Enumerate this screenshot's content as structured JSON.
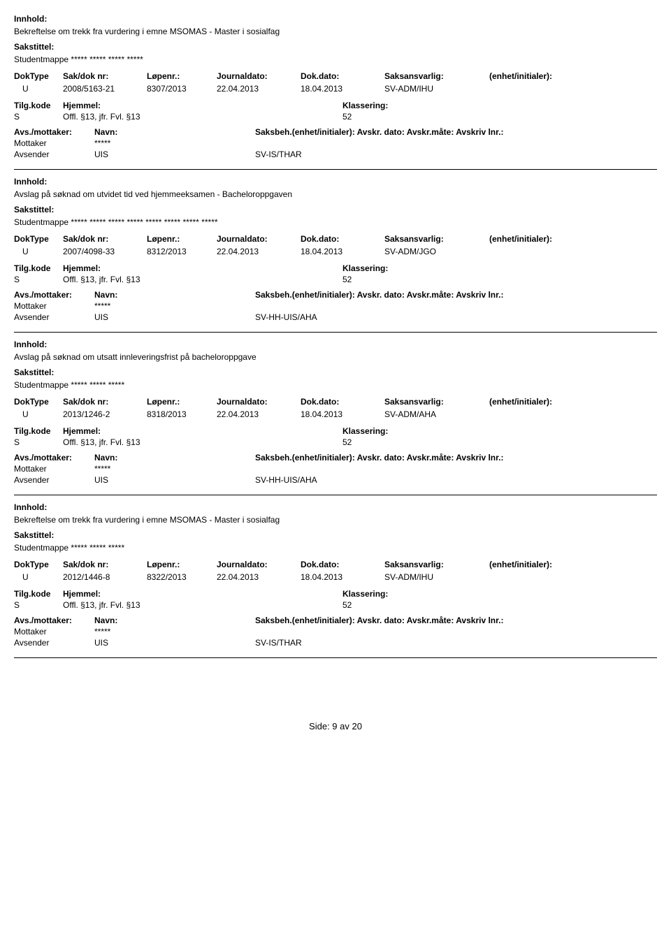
{
  "labels": {
    "innhold": "Innhold:",
    "sakstittel": "Sakstittel:",
    "doktype": "DokType",
    "sakdok": "Sak/dok nr:",
    "lopenr": "Løpenr.:",
    "journaldato": "Journaldato:",
    "dokdato": "Dok.dato:",
    "saksansvarlig": "Saksansvarlig:",
    "enhet": "(enhet/initialer):",
    "tilgkode": "Tilg.kode",
    "hjemmel": "Hjemmel:",
    "klassering": "Klassering:",
    "avsmottaker": "Avs./mottaker:",
    "navn": "Navn:",
    "saksbeh": "Saksbeh.(enhet/initialer): Avskr. dato:  Avskr.måte:  Avskriv lnr.:",
    "mottaker": "Mottaker",
    "avsender": "Avsender"
  },
  "records": [
    {
      "innhold": "Bekreftelse om trekk fra vurdering i emne MSOMAS - Master i sosialfag",
      "sakstittel": "Studentmappe ***** ***** ***** *****",
      "doktype": "U",
      "sakdok": "2008/5163-21",
      "lopenr": "8307/2013",
      "journaldato": "22.04.2013",
      "dokdato": "18.04.2013",
      "saksansvarlig": "SV-ADM/IHU",
      "tilgkode": "S",
      "hjemmel": "Offl. §13, jfr. Fvl. §13",
      "klassering": "52",
      "mottaker_name": "*****",
      "avsender_name": "UIS",
      "avsender_unit": "SV-IS/THAR"
    },
    {
      "innhold": "Avslag på søknad om utvidet tid ved hjemmeeksamen - Bacheloroppgaven",
      "sakstittel": "Studentmappe ***** ***** ***** ***** ***** ***** ***** *****",
      "doktype": "U",
      "sakdok": "2007/4098-33",
      "lopenr": "8312/2013",
      "journaldato": "22.04.2013",
      "dokdato": "18.04.2013",
      "saksansvarlig": "SV-ADM/JGO",
      "tilgkode": "S",
      "hjemmel": "Offl. §13, jfr. Fvl. §13",
      "klassering": "52",
      "mottaker_name": "*****",
      "avsender_name": "UIS",
      "avsender_unit": "SV-HH-UIS/AHA"
    },
    {
      "innhold": "Avslag på søknad om utsatt innleveringsfrist på bacheloroppgave",
      "sakstittel": "Studentmappe ***** ***** *****",
      "doktype": "U",
      "sakdok": "2013/1246-2",
      "lopenr": "8318/2013",
      "journaldato": "22.04.2013",
      "dokdato": "18.04.2013",
      "saksansvarlig": "SV-ADM/AHA",
      "tilgkode": "S",
      "hjemmel": "Offl. §13, jfr. Fvl. §13",
      "klassering": "52",
      "mottaker_name": "*****",
      "avsender_name": "UIS",
      "avsender_unit": "SV-HH-UIS/AHA"
    },
    {
      "innhold": "Bekreftelse om trekk fra vurdering i emne MSOMAS - Master i sosialfag",
      "sakstittel": "Studentmappe ***** ***** *****",
      "doktype": "U",
      "sakdok": "2012/1446-8",
      "lopenr": "8322/2013",
      "journaldato": "22.04.2013",
      "dokdato": "18.04.2013",
      "saksansvarlig": "SV-ADM/IHU",
      "tilgkode": "S",
      "hjemmel": "Offl. §13, jfr. Fvl. §13",
      "klassering": "52",
      "mottaker_name": "*****",
      "avsender_name": "UIS",
      "avsender_unit": "SV-IS/THAR"
    }
  ],
  "footer": "Side: 9 av 20"
}
